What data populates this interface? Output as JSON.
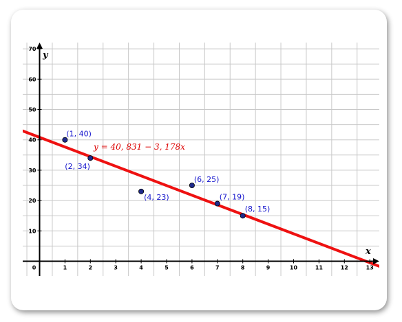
{
  "chart_data": {
    "type": "scatter",
    "xlabel": "x",
    "ylabel": "y",
    "xlim": [
      -0.6,
      13.4
    ],
    "ylim": [
      -5.3,
      72
    ],
    "x_ticks": [
      0,
      1,
      2,
      3,
      4,
      5,
      6,
      7,
      8,
      9,
      10,
      11,
      12,
      13
    ],
    "y_ticks": [
      10,
      20,
      30,
      40,
      50,
      60,
      70
    ],
    "x_tick_labels": [
      "0",
      "1",
      "2",
      "3",
      "4",
      "5",
      "6",
      "7",
      "8",
      "9",
      "10",
      "11",
      "12",
      "13"
    ],
    "y_tick_labels": [
      "10",
      "20",
      "30",
      "40",
      "50",
      "60",
      "70"
    ],
    "grid": true,
    "points": [
      {
        "x": 1,
        "y": 40,
        "label": "(1, 40)"
      },
      {
        "x": 2,
        "y": 34,
        "label": "(2, 34)"
      },
      {
        "x": 4,
        "y": 23,
        "label": "(4, 23)"
      },
      {
        "x": 6,
        "y": 25,
        "label": "(6, 25)"
      },
      {
        "x": 7,
        "y": 19,
        "label": "(7, 19)"
      },
      {
        "x": 8,
        "y": 15,
        "label": "(8, 15)"
      }
    ],
    "regression_line": {
      "intercept": 40.831,
      "slope": -3.178,
      "equation_label": "y = 40, 831 − 3, 178x"
    },
    "colors": {
      "grid": "#c8c8c8",
      "axis": "#000000",
      "point_fill": "#1f2a8c",
      "point_label": "#1414cc",
      "line": "#ee1111",
      "equation": "#dd0000"
    }
  }
}
